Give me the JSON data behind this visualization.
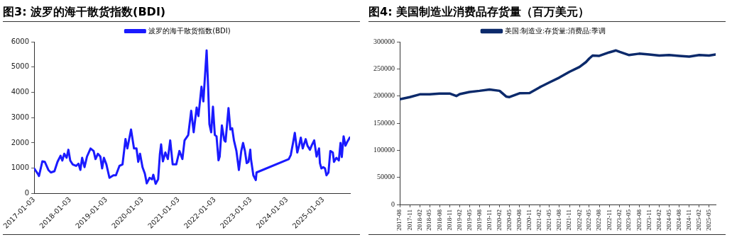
{
  "chart_data": [
    {
      "type": "line",
      "title": "图3:  波罗的海干散货指数(BDI)",
      "series": [
        {
          "name": "波罗的海干散货指数(BDI)",
          "color": "#1a1aff",
          "x": [
            "2017-01-03",
            "2017-02-09",
            "2017-02-21",
            "2017-03-27",
            "2017-04-21",
            "2017-05-27",
            "2017-06-21",
            "2017-07-27",
            "2017-08-27",
            "2017-09-27",
            "2017-10-15",
            "2017-11-03",
            "2017-11-27",
            "2017-12-15",
            "2018-01-03",
            "2018-01-27",
            "2018-03-03",
            "2018-03-27",
            "2018-04-15",
            "2018-05-03",
            "2018-05-27",
            "2018-06-21",
            "2018-07-27",
            "2018-08-27",
            "2018-09-15",
            "2018-10-09",
            "2018-11-03",
            "2018-11-21",
            "2018-12-09",
            "2019-01-03",
            "2019-02-03",
            "2019-03-15",
            "2019-04-09",
            "2019-05-15",
            "2019-06-15",
            "2019-07-15",
            "2019-08-03",
            "2019-09-09",
            "2019-10-09",
            "2019-11-03",
            "2019-11-21",
            "2019-12-09",
            "2020-01-03",
            "2020-01-27",
            "2020-02-15",
            "2020-03-15",
            "2020-04-09",
            "2020-04-21",
            "2020-05-15",
            "2020-06-09",
            "2020-06-27",
            "2020-07-09",
            "2020-07-27",
            "2020-08-21",
            "2020-09-15",
            "2020-10-09",
            "2020-11-03",
            "2020-12-09",
            "2021-01-10",
            "2021-02-09",
            "2021-03-03",
            "2021-04-09",
            "2021-05-09",
            "2021-06-03",
            "2021-07-03",
            "2021-07-21",
            "2021-08-21",
            "2021-09-09",
            "2021-10-12",
            "2021-10-27",
            "2021-11-09",
            "2021-11-27",
            "2021-12-15",
            "2022-01-03",
            "2022-01-20",
            "2022-02-09",
            "2022-02-21",
            "2022-03-15",
            "2022-04-09",
            "2022-04-21",
            "2022-05-21",
            "2022-06-09",
            "2022-06-27",
            "2022-07-15",
            "2022-08-09",
            "2022-09-03",
            "2022-09-27",
            "2022-10-15",
            "2022-11-03",
            "2022-11-21",
            "2022-12-09",
            "2022-12-27",
            "2023-01-03",
            "2023-01-27",
            "2023-02-21",
            "2023-02-28",
            "2024-01-20",
            "2024-02-09",
            "2024-03-03",
            "2024-03-21",
            "2024-04-15",
            "2024-05-03",
            "2024-05-21",
            "2024-06-09",
            "2024-07-09",
            "2024-07-27",
            "2024-08-21",
            "2024-09-09",
            "2024-10-03",
            "2024-10-27",
            "2024-11-21",
            "2024-11-30",
            "2024-12-15",
            "2025-01-03",
            "2025-01-20",
            "2025-02-04",
            "2025-02-24",
            "2025-03-15",
            "2025-04-09",
            "2025-04-21",
            "2025-05-15",
            "2025-06-09",
            "2025-06-26",
            "2025-07-09",
            "2025-07-27",
            "2025-08-15",
            "2025-09-03",
            "2025-09-27"
          ],
          "values": [
            990,
            780,
            690,
            1270,
            1250,
            930,
            830,
            880,
            1250,
            1490,
            1300,
            1570,
            1410,
            1730,
            1300,
            1150,
            1090,
            1180,
            930,
            1410,
            1040,
            1460,
            1780,
            1680,
            1360,
            1570,
            1460,
            990,
            1410,
            1150,
            620,
            720,
            720,
            1090,
            1150,
            2150,
            1780,
            2530,
            1780,
            1780,
            1250,
            1570,
            1040,
            780,
            400,
            620,
            560,
            740,
            380,
            560,
            1570,
            1940,
            1270,
            1620,
            1360,
            2100,
            1150,
            1150,
            1680,
            1360,
            2100,
            2310,
            3270,
            2420,
            3400,
            3060,
            4220,
            3640,
            5660,
            4220,
            2740,
            2420,
            3430,
            2310,
            2260,
            1310,
            1460,
            2690,
            2100,
            2050,
            3380,
            2530,
            2580,
            2100,
            1680,
            930,
            1680,
            2000,
            1680,
            1200,
            1250,
            1730,
            1360,
            720,
            530,
            830,
            1360,
            1520,
            2000,
            2400,
            1620,
            1890,
            2210,
            1780,
            2150,
            1890,
            1730,
            1910,
            2100,
            1460,
            1780,
            1200,
            990,
            1040,
            990,
            720,
            830,
            1680,
            1620,
            1250,
            1410,
            1310,
            2000,
            1440,
            2260,
            1890,
            2050,
            2210
          ]
        }
      ],
      "xlim": [
        "2017-01-03",
        "2025-09-30"
      ],
      "xticks": [
        "2017-01-03",
        "2018-01-03",
        "2019-01-03",
        "2020-01-03",
        "2021-01-03",
        "2022-01-03",
        "2023-01-03",
        "2024-01-03",
        "2025-01-03"
      ],
      "ylim": [
        0,
        6000
      ],
      "yticks": [
        0,
        1000,
        2000,
        3000,
        4000,
        5000,
        6000
      ],
      "legend": "top"
    },
    {
      "type": "line",
      "title": "图4:  美国制造业消费品存货量（百万美元）",
      "series": [
        {
          "name": "美国:制造业:存货量:消费品:季调",
          "color": "#0c2a6b",
          "x": [
            "2017-08",
            "2017-11",
            "2018-02",
            "2018-05",
            "2018-08",
            "2018-11",
            "2019-01",
            "2019-02",
            "2019-05",
            "2019-08",
            "2019-11",
            "2020-02",
            "2020-04",
            "2020-05",
            "2020-08",
            "2020-11",
            "2021-02",
            "2021-05",
            "2021-08",
            "2021-11",
            "2022-02",
            "2022-04",
            "2022-05",
            "2022-06",
            "2022-08",
            "2022-11",
            "2023-01",
            "2023-02",
            "2023-05",
            "2023-08",
            "2023-11",
            "2024-02",
            "2024-05",
            "2024-08",
            "2024-11",
            "2025-02",
            "2025-05",
            "2025-07"
          ],
          "values": [
            194000,
            198000,
            203000,
            203000,
            204500,
            204500,
            200000,
            203500,
            207500,
            209500,
            212000,
            209500,
            199000,
            198000,
            205000,
            205500,
            216000,
            225000,
            234000,
            244500,
            253500,
            262500,
            269000,
            274500,
            274000,
            280500,
            284000,
            281500,
            275500,
            278000,
            276500,
            274500,
            275500,
            274000,
            272500,
            275500,
            274500,
            276500
          ]
        }
      ],
      "xlim": [
        "2017-08",
        "2025-07"
      ],
      "xticks": [
        "2017-08",
        "2017-11",
        "2018-02",
        "2018-05",
        "2018-08",
        "2018-11",
        "2019-02",
        "2019-05",
        "2019-08",
        "2019-11",
        "2020-02",
        "2020-05",
        "2020-08",
        "2020-11",
        "2021-02",
        "2021-05",
        "2021-08",
        "2021-11",
        "2022-02",
        "2022-05",
        "2022-08",
        "2022-11",
        "2023-02",
        "2023-05",
        "2023-08",
        "2023-11",
        "2024-02",
        "2024-05",
        "2024-08",
        "2024-11",
        "2025-02",
        "2025-05"
      ],
      "ylim": [
        0,
        300000
      ],
      "yticks": [
        0,
        50000,
        100000,
        150000,
        200000,
        250000,
        300000
      ],
      "legend": "top"
    }
  ]
}
